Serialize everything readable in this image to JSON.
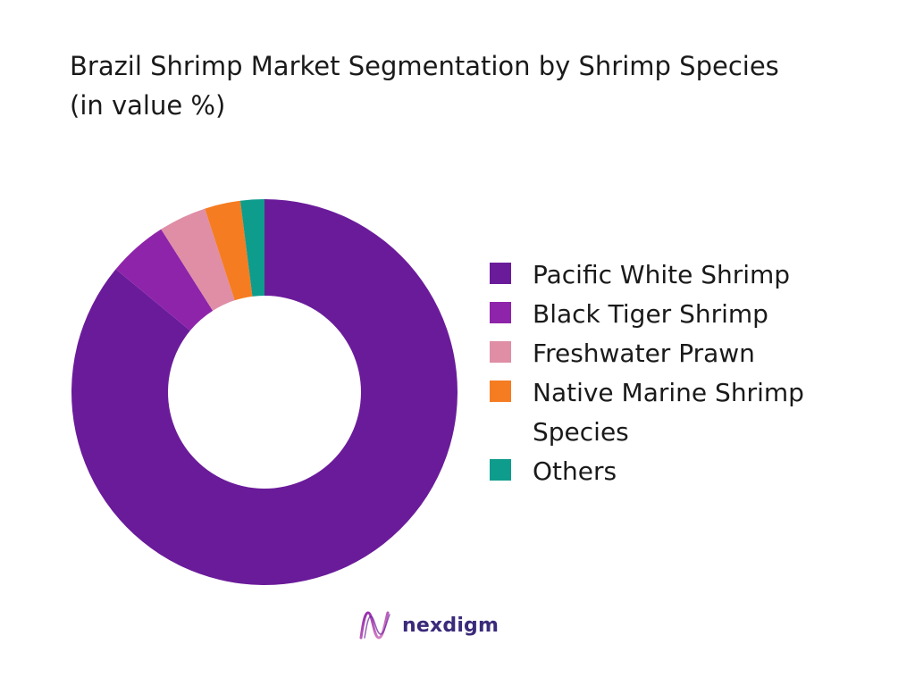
{
  "chart_data": {
    "type": "pie",
    "title": "Brazil Shrimp Market Segmentation by Shrimp Species (in value %)",
    "categories": [
      "Pacific White Shrimp",
      "Black Tiger Shrimp",
      "Freshwater Prawn",
      "Native Marine Shrimp Species",
      "Others"
    ],
    "values": [
      86,
      5,
      4,
      3,
      2
    ],
    "colors": [
      "#6a1b9a",
      "#8e24aa",
      "#df8ea6",
      "#f57c21",
      "#0e9c8c"
    ],
    "donut": true,
    "legend": "right"
  },
  "brand": {
    "name": "nexdigm",
    "icon": "nexdigm-logo-icon"
  }
}
